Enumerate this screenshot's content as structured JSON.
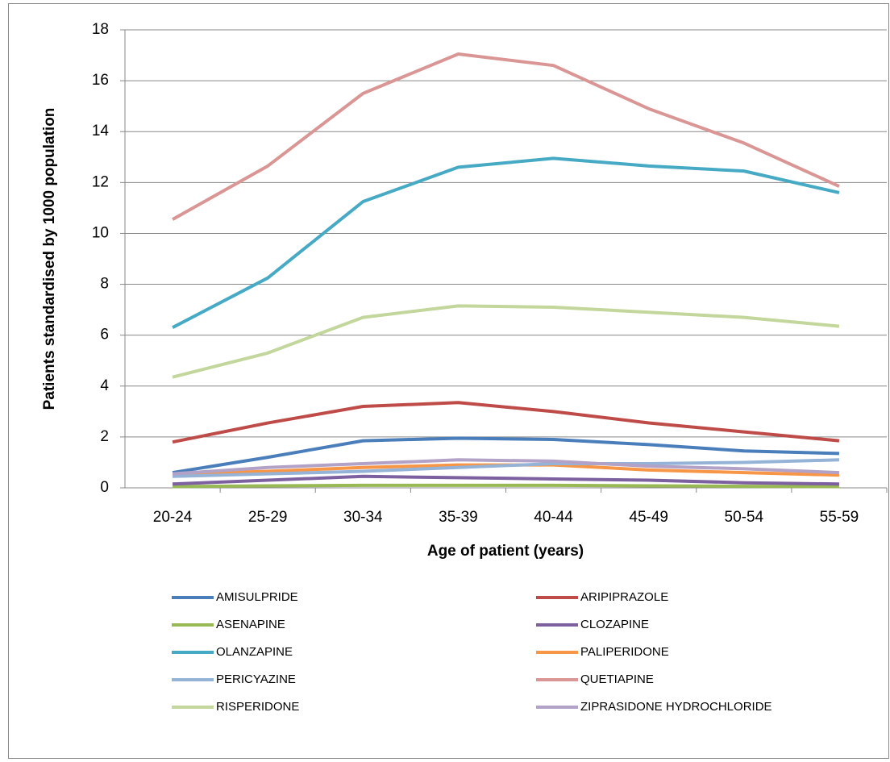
{
  "chart_data": {
    "type": "line",
    "xlabel": "Age of patient (years)",
    "ylabel": "Patients standardised by 1000 population",
    "categories": [
      "20-24",
      "25-29",
      "30-34",
      "35-39",
      "40-44",
      "45-49",
      "50-54",
      "55-59"
    ],
    "ylim": [
      0,
      18
    ],
    "yticks": [
      0,
      2,
      4,
      6,
      8,
      10,
      12,
      14,
      16,
      18
    ],
    "grid": true,
    "legend": "bottom",
    "series": [
      {
        "name": "AMISULPRIDE",
        "color": "#4a7ebb",
        "values": [
          0.6,
          1.2,
          1.85,
          1.95,
          1.9,
          1.7,
          1.45,
          1.35
        ]
      },
      {
        "name": "ARIPIPRAZOLE",
        "color": "#be4b48",
        "values": [
          1.8,
          2.55,
          3.2,
          3.35,
          3.0,
          2.55,
          2.2,
          1.85
        ]
      },
      {
        "name": "ASENAPINE",
        "color": "#98b954",
        "values": [
          0.05,
          0.08,
          0.1,
          0.1,
          0.1,
          0.08,
          0.06,
          0.05
        ]
      },
      {
        "name": "CLOZAPINE",
        "color": "#7d60a0",
        "values": [
          0.15,
          0.3,
          0.45,
          0.4,
          0.35,
          0.3,
          0.2,
          0.15
        ]
      },
      {
        "name": "OLANZAPINE",
        "color": "#46aac5",
        "values": [
          6.3,
          8.25,
          11.25,
          12.6,
          12.95,
          12.65,
          12.45,
          11.6
        ]
      },
      {
        "name": "PALIPERIDONE",
        "color": "#f79646",
        "values": [
          0.55,
          0.65,
          0.8,
          0.9,
          0.9,
          0.7,
          0.6,
          0.5
        ]
      },
      {
        "name": "PERICYAZINE",
        "color": "#95b3d7",
        "values": [
          0.45,
          0.55,
          0.65,
          0.8,
          0.95,
          0.95,
          1.0,
          1.1
        ]
      },
      {
        "name": "QUETIAPINE",
        "color": "#d99694",
        "values": [
          10.55,
          12.65,
          15.5,
          17.05,
          16.6,
          14.9,
          13.55,
          11.85
        ]
      },
      {
        "name": "RISPERIDONE",
        "color": "#c3d69b",
        "values": [
          4.35,
          5.3,
          6.7,
          7.15,
          7.1,
          6.9,
          6.7,
          6.35
        ]
      },
      {
        "name": "ZIPRASIDONE HYDROCHLORIDE",
        "color": "#b3a2c7",
        "values": [
          0.55,
          0.8,
          0.95,
          1.1,
          1.05,
          0.85,
          0.75,
          0.6
        ]
      }
    ]
  }
}
